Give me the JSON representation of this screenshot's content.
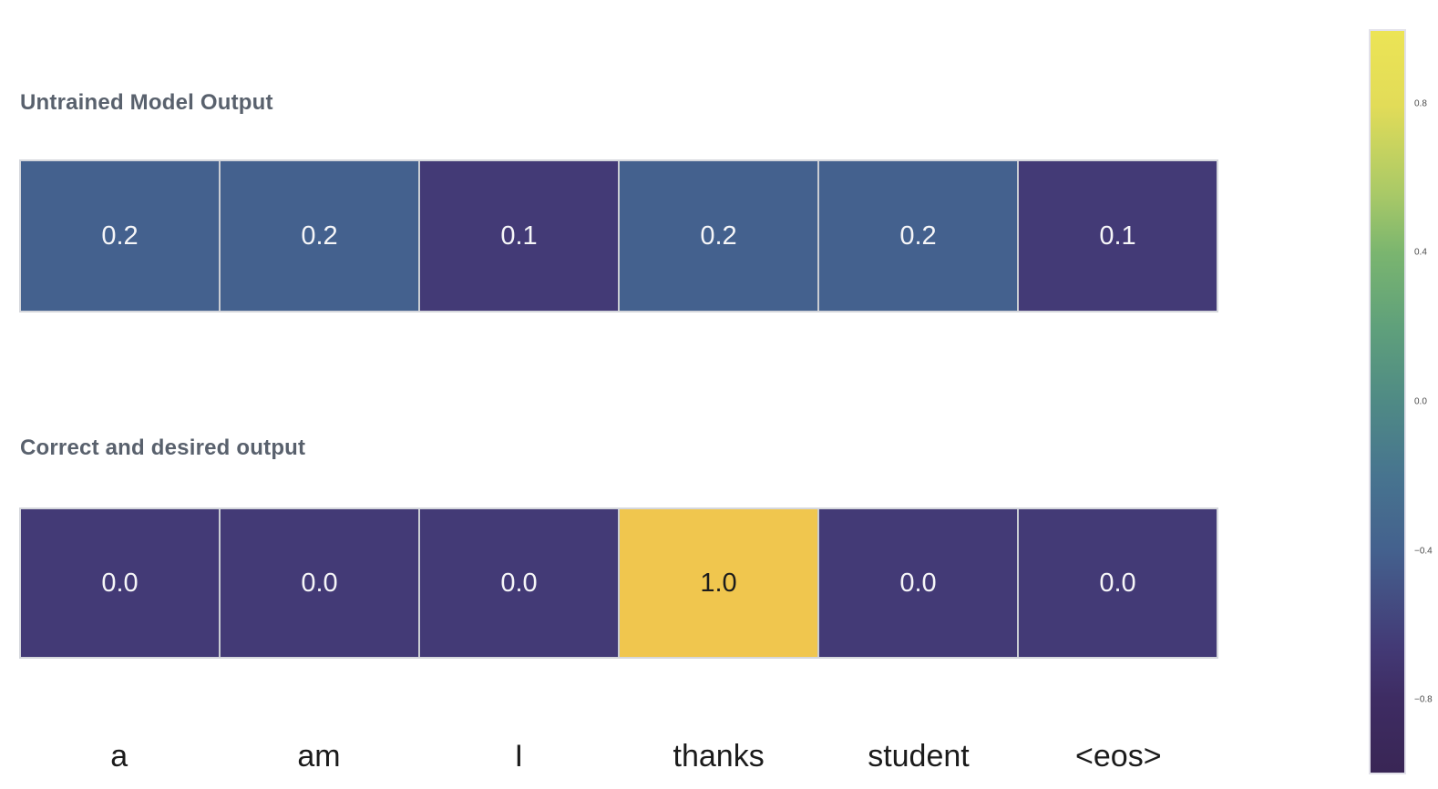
{
  "titles": {
    "row1": "Untrained Model Output",
    "row2": "Correct and desired output"
  },
  "tokens": [
    "a",
    "am",
    "I",
    "thanks",
    "student",
    "<eos>"
  ],
  "rows": {
    "untrained": {
      "cells": [
        {
          "label": "0.2",
          "bg": "#44618e",
          "fg": "#f6f6f8"
        },
        {
          "label": "0.2",
          "bg": "#44618e",
          "fg": "#f6f6f8"
        },
        {
          "label": "0.1",
          "bg": "#433a76",
          "fg": "#f6f6f8"
        },
        {
          "label": "0.2",
          "bg": "#44618e",
          "fg": "#f6f6f8"
        },
        {
          "label": "0.2",
          "bg": "#44618e",
          "fg": "#f6f6f8"
        },
        {
          "label": "0.1",
          "bg": "#433a76",
          "fg": "#f6f6f8"
        }
      ]
    },
    "desired": {
      "cells": [
        {
          "label": "0.0",
          "bg": "#433a76",
          "fg": "#f6f6f8"
        },
        {
          "label": "0.0",
          "bg": "#433a76",
          "fg": "#f6f6f8"
        },
        {
          "label": "0.0",
          "bg": "#433a76",
          "fg": "#f6f6f8"
        },
        {
          "label": "1.0",
          "bg": "#f0c64e",
          "fg": "#1c1c1c"
        },
        {
          "label": "0.0",
          "bg": "#433a76",
          "fg": "#f6f6f8"
        },
        {
          "label": "0.0",
          "bg": "#433a76",
          "fg": "#f6f6f8"
        }
      ]
    }
  },
  "colorbar": {
    "ticks": [
      {
        "label": "0.8",
        "top": "10%"
      },
      {
        "label": "0.4",
        "top": "30%"
      },
      {
        "label": "0.0",
        "top": "50%"
      },
      {
        "label": "−0.4",
        "top": "70%"
      },
      {
        "label": "−0.8",
        "top": "90%"
      }
    ],
    "gradient": [
      "#ece455 0%",
      "#e2dc58 10%",
      "#a9c967 22%",
      "#7ab56f 30%",
      "#5fa07b 40%",
      "#4f8a85 50%",
      "#47748f 60%",
      "#44618e 70%",
      "#433a76 83%",
      "#3e2c63 90%",
      "#392655 100%"
    ]
  },
  "chart_data": {
    "type": "heatmap",
    "title": "",
    "categories": [
      "a",
      "am",
      "I",
      "thanks",
      "student",
      "<eos>"
    ],
    "series": [
      {
        "name": "Untrained Model Output",
        "values": [
          0.2,
          0.2,
          0.1,
          0.2,
          0.2,
          0.1
        ]
      },
      {
        "name": "Correct and desired output",
        "values": [
          0.0,
          0.0,
          0.0,
          1.0,
          0.0,
          0.0
        ]
      }
    ],
    "colorbar": {
      "orientation": "vertical-right",
      "range": [
        -1.0,
        1.0
      ],
      "tick_labels": [
        "0.8",
        "0.4",
        "0.0",
        "−0.4",
        "−0.8"
      ],
      "colormap": "viridis-like (dark purple low → blue → teal → green → yellow high)"
    },
    "layout_hints": {
      "rows_annotated": true,
      "annotation_colors": {
        "low_cells": "white text",
        "high_cell_1.0": "black text"
      },
      "x_axis_position": "bottom, shared by both rows"
    }
  }
}
